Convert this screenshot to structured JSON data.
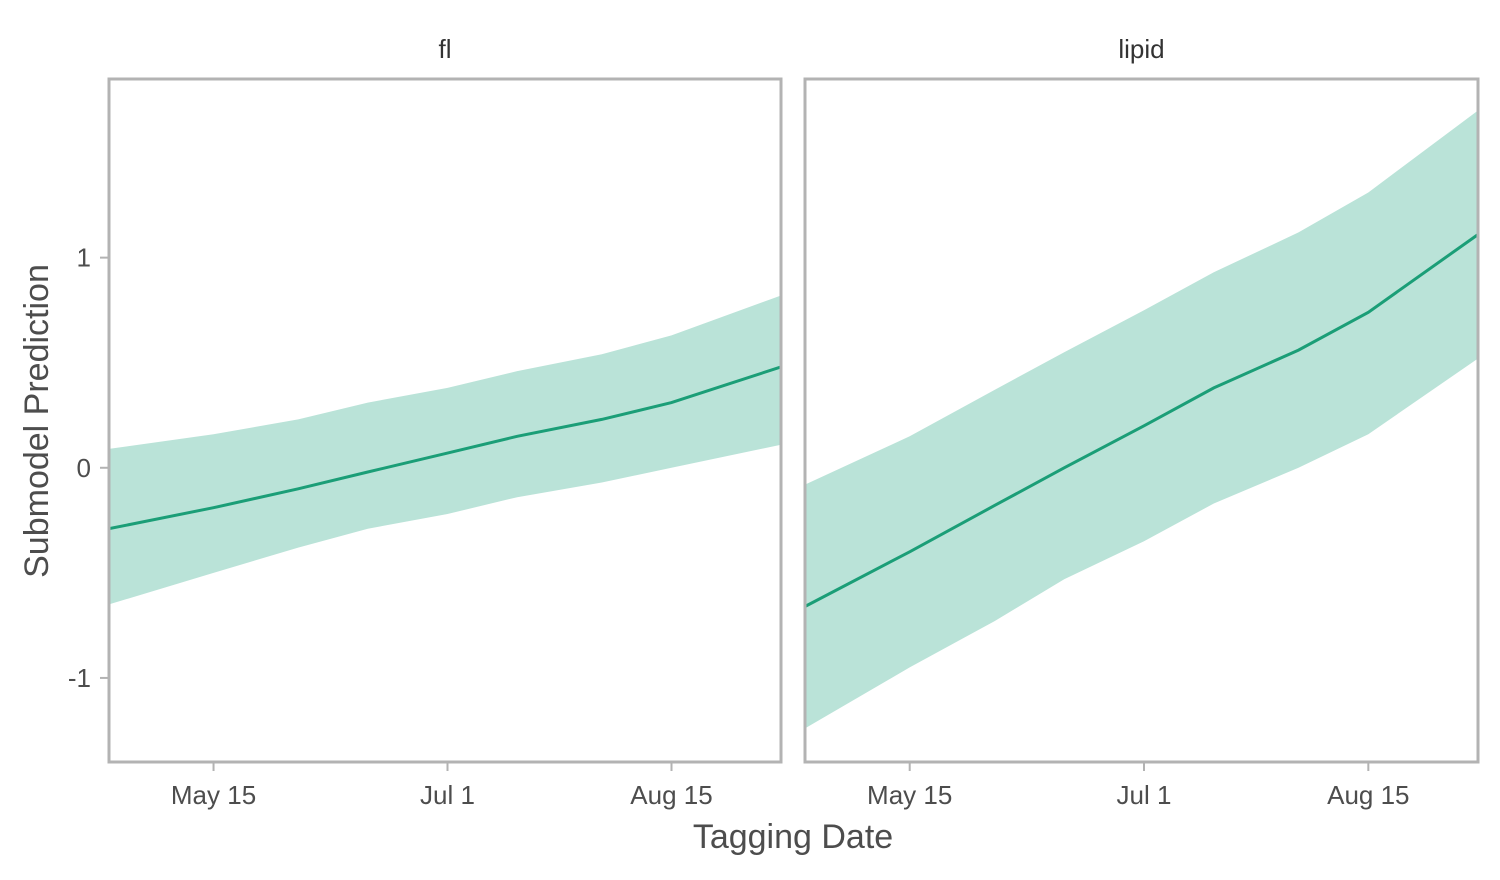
{
  "chart_data": {
    "type": "line",
    "xlabel": "Tagging Date",
    "ylabel": "Submodel Prediction",
    "xlim": [
      "2023-04-24",
      "2023-09-06"
    ],
    "ylim": [
      -1.4,
      1.85
    ],
    "x_ticks": [
      {
        "date": "2023-05-15",
        "label": "May 15"
      },
      {
        "date": "2023-07-01",
        "label": "Jul 1"
      },
      {
        "date": "2023-08-15",
        "label": "Aug 15"
      }
    ],
    "y_ticks": [
      {
        "value": -1,
        "label": "-1"
      },
      {
        "value": 0,
        "label": "0"
      },
      {
        "value": 1,
        "label": "1"
      }
    ],
    "grid": false,
    "legend": "none",
    "colors": {
      "line": "#1b9e77",
      "ribbon": "#bae3d8",
      "border": "#b3b3b3",
      "text": "#4d4d4d"
    },
    "panels": [
      {
        "label": "fl",
        "x": [
          "2023-04-24",
          "2023-05-15",
          "2023-06-01",
          "2023-06-15",
          "2023-07-01",
          "2023-07-15",
          "2023-08-01",
          "2023-08-15",
          "2023-09-06"
        ],
        "fit": [
          -0.29,
          -0.19,
          -0.1,
          -0.02,
          0.07,
          0.15,
          0.23,
          0.31,
          0.48
        ],
        "lower": [
          -0.65,
          -0.5,
          -0.38,
          -0.29,
          -0.22,
          -0.14,
          -0.07,
          0.0,
          0.11
        ],
        "upper": [
          0.09,
          0.16,
          0.23,
          0.31,
          0.38,
          0.46,
          0.54,
          0.63,
          0.82
        ]
      },
      {
        "label": "lipid",
        "x": [
          "2023-04-24",
          "2023-05-15",
          "2023-06-01",
          "2023-06-15",
          "2023-07-01",
          "2023-07-15",
          "2023-08-01",
          "2023-08-15",
          "2023-09-06"
        ],
        "fit": [
          -0.66,
          -0.4,
          -0.18,
          0.0,
          0.2,
          0.38,
          0.56,
          0.74,
          1.11
        ],
        "lower": [
          -1.24,
          -0.95,
          -0.73,
          -0.53,
          -0.35,
          -0.17,
          0.0,
          0.16,
          0.52
        ],
        "upper": [
          -0.08,
          0.15,
          0.37,
          0.55,
          0.75,
          0.93,
          1.12,
          1.31,
          1.7
        ]
      }
    ]
  }
}
